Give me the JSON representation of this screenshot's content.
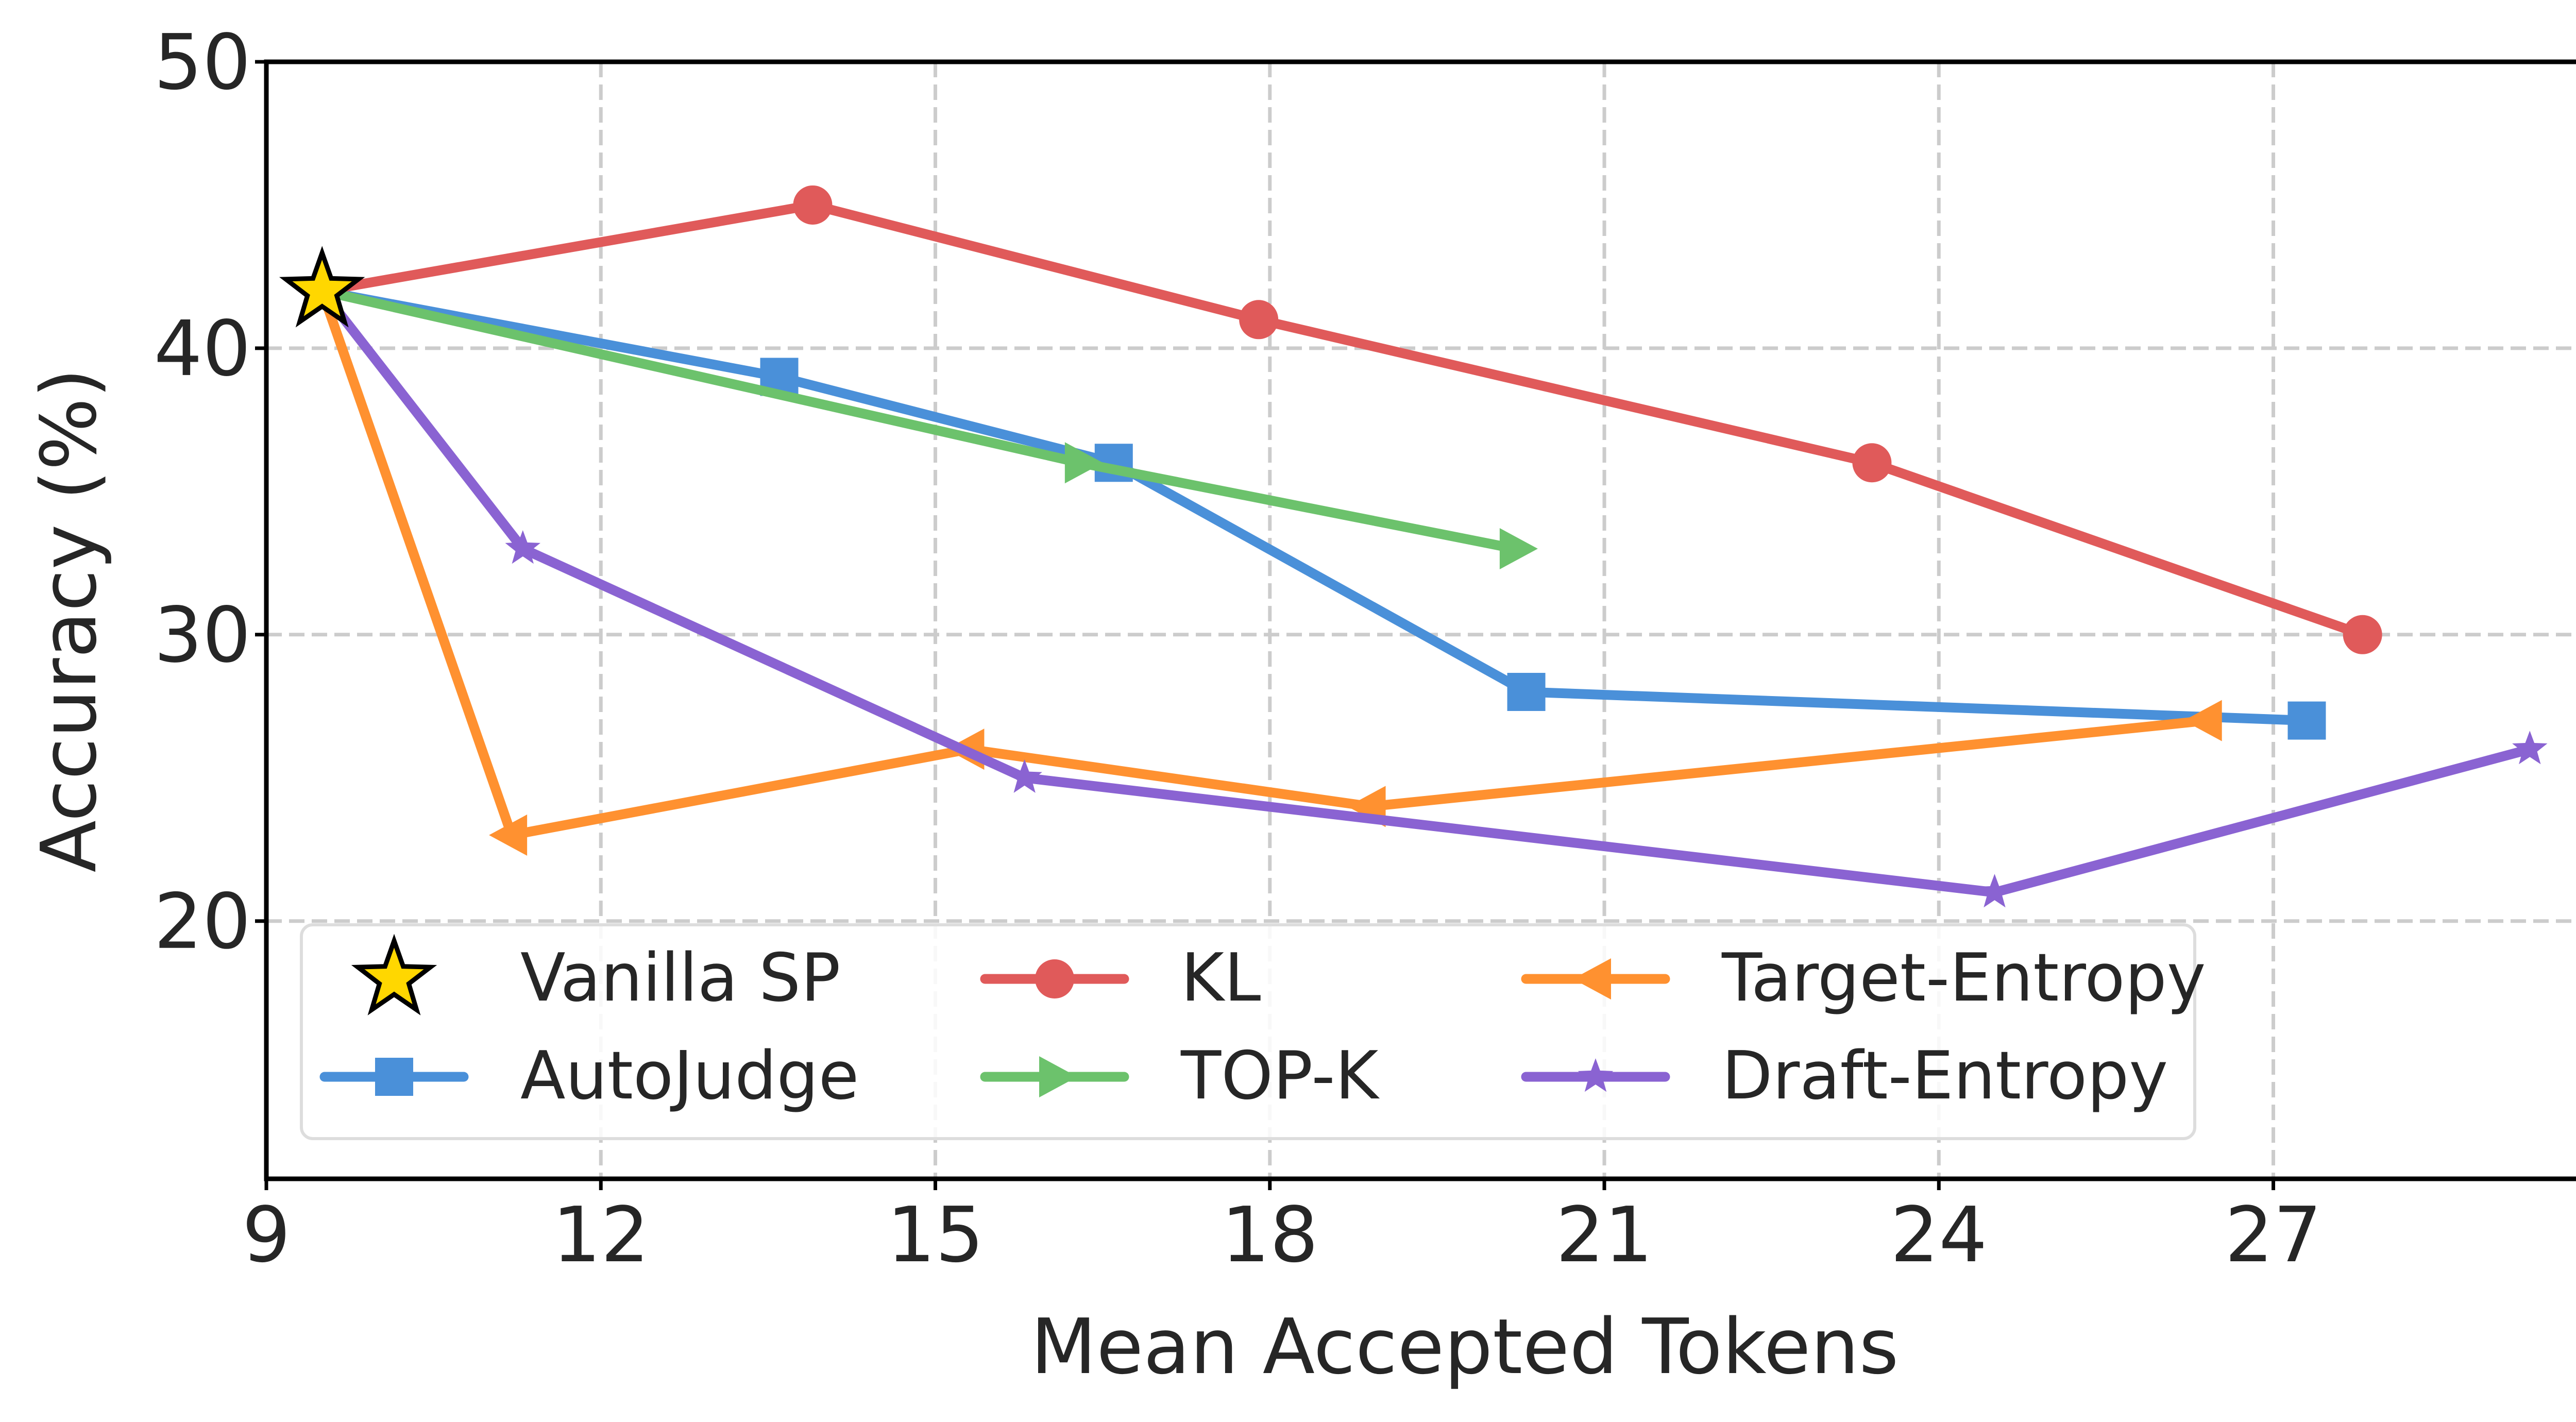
{
  "chart_data": {
    "type": "line",
    "title": "",
    "xlabel": "Mean Accepted Tokens",
    "ylabel": "Accuracy (%)",
    "xlim": [
      9,
      30.5
    ],
    "ylim": [
      11,
      50
    ],
    "xticks": [
      9,
      12,
      15,
      18,
      21,
      24,
      27
    ],
    "yticks": [
      20,
      30,
      40,
      50
    ],
    "xtick_labels": [
      "9",
      "12",
      "15",
      "18",
      "21",
      "24",
      "27"
    ],
    "ytick_labels": [
      "20",
      "30",
      "40",
      "50"
    ],
    "grid": true,
    "legend_position": "lower-left",
    "series": [
      {
        "name": "Vanilla SP",
        "color": "#FFD700",
        "marker": "big-star",
        "line": false,
        "points": [
          [
            9.5,
            42
          ]
        ]
      },
      {
        "name": "AutoJudge",
        "color": "#4A90D9",
        "marker": "square",
        "line": true,
        "points": [
          [
            9.5,
            42
          ],
          [
            13.6,
            39
          ],
          [
            16.6,
            36
          ],
          [
            20.3,
            28
          ],
          [
            27.3,
            27
          ]
        ]
      },
      {
        "name": "KL",
        "color": "#E05A5A",
        "marker": "circle",
        "line": true,
        "points": [
          [
            9.5,
            42
          ],
          [
            13.9,
            45
          ],
          [
            17.9,
            41
          ],
          [
            23.4,
            36
          ],
          [
            27.8,
            30
          ]
        ]
      },
      {
        "name": "TOP-K",
        "color": "#6CC26C",
        "marker": "triangle-right",
        "line": true,
        "points": [
          [
            9.5,
            42
          ],
          [
            16.3,
            36
          ],
          [
            20.2,
            33
          ]
        ]
      },
      {
        "name": "Target-Entropy",
        "color": "#FF9130",
        "marker": "triangle-left",
        "line": true,
        "points": [
          [
            9.5,
            42
          ],
          [
            11.2,
            23
          ],
          [
            15.3,
            26
          ],
          [
            18.9,
            24
          ],
          [
            26.4,
            27
          ]
        ]
      },
      {
        "name": "Draft-Entropy",
        "color": "#8A63D2",
        "marker": "star",
        "line": true,
        "points": [
          [
            9.5,
            42
          ],
          [
            11.3,
            33
          ],
          [
            15.8,
            25
          ],
          [
            24.5,
            21
          ],
          [
            29.3,
            26
          ]
        ]
      }
    ],
    "legend_order": [
      "Vanilla SP",
      "KL",
      "Target-Entropy",
      "AutoJudge",
      "TOP-K",
      "Draft-Entropy"
    ]
  }
}
